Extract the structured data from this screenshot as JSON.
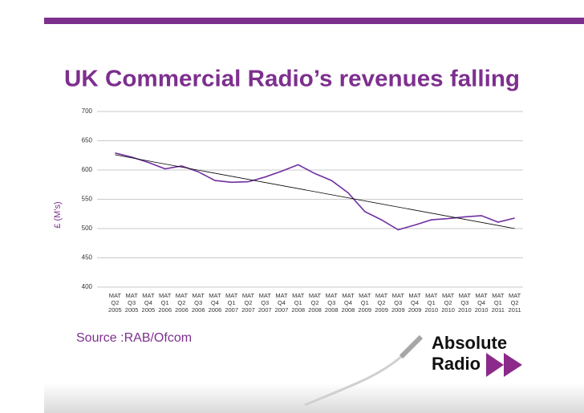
{
  "title": "UK Commercial Radio’s revenues falling",
  "source": "Source :RAB/Ofcom",
  "logo": [
    "Absolute",
    "Radio"
  ],
  "chart_data": {
    "type": "line",
    "ylabel": "£ (M’s)",
    "categories": [
      "MAT Q2 2005",
      "MAT Q3 2005",
      "MAT Q4 2005",
      "MAT Q1 2006",
      "MAT Q2 2006",
      "MAT Q3 2006",
      "MAT Q4 2006",
      "MAT Q1 2007",
      "MAT Q2 2007",
      "MAT Q3 2007",
      "MAT Q4 2007",
      "MAT Q1 2008",
      "MAT Q2 2008",
      "MAT Q3 2008",
      "MAT Q4 2008",
      "MAT Q1 2009",
      "MAT Q2 2009",
      "MAT Q3 2009",
      "MAT Q4 2009",
      "MAT Q1 2010",
      "MAT Q2 2010",
      "MAT Q3 2010",
      "MAT Q4 2010",
      "MAT Q1 2011",
      "MAT Q2 2011"
    ],
    "values": [
      629,
      622,
      613,
      602,
      607,
      597,
      582,
      579,
      580,
      588,
      598,
      609,
      594,
      582,
      561,
      529,
      515,
      498,
      506,
      515,
      517,
      520,
      522,
      511,
      518
    ],
    "color": "#7030a0",
    "trendline": {
      "start": 626,
      "end": 500,
      "color": "#000000"
    },
    "ylim": [
      400,
      700
    ],
    "yticks": [
      400,
      450,
      500,
      550,
      600,
      650,
      700
    ],
    "grid": true
  }
}
